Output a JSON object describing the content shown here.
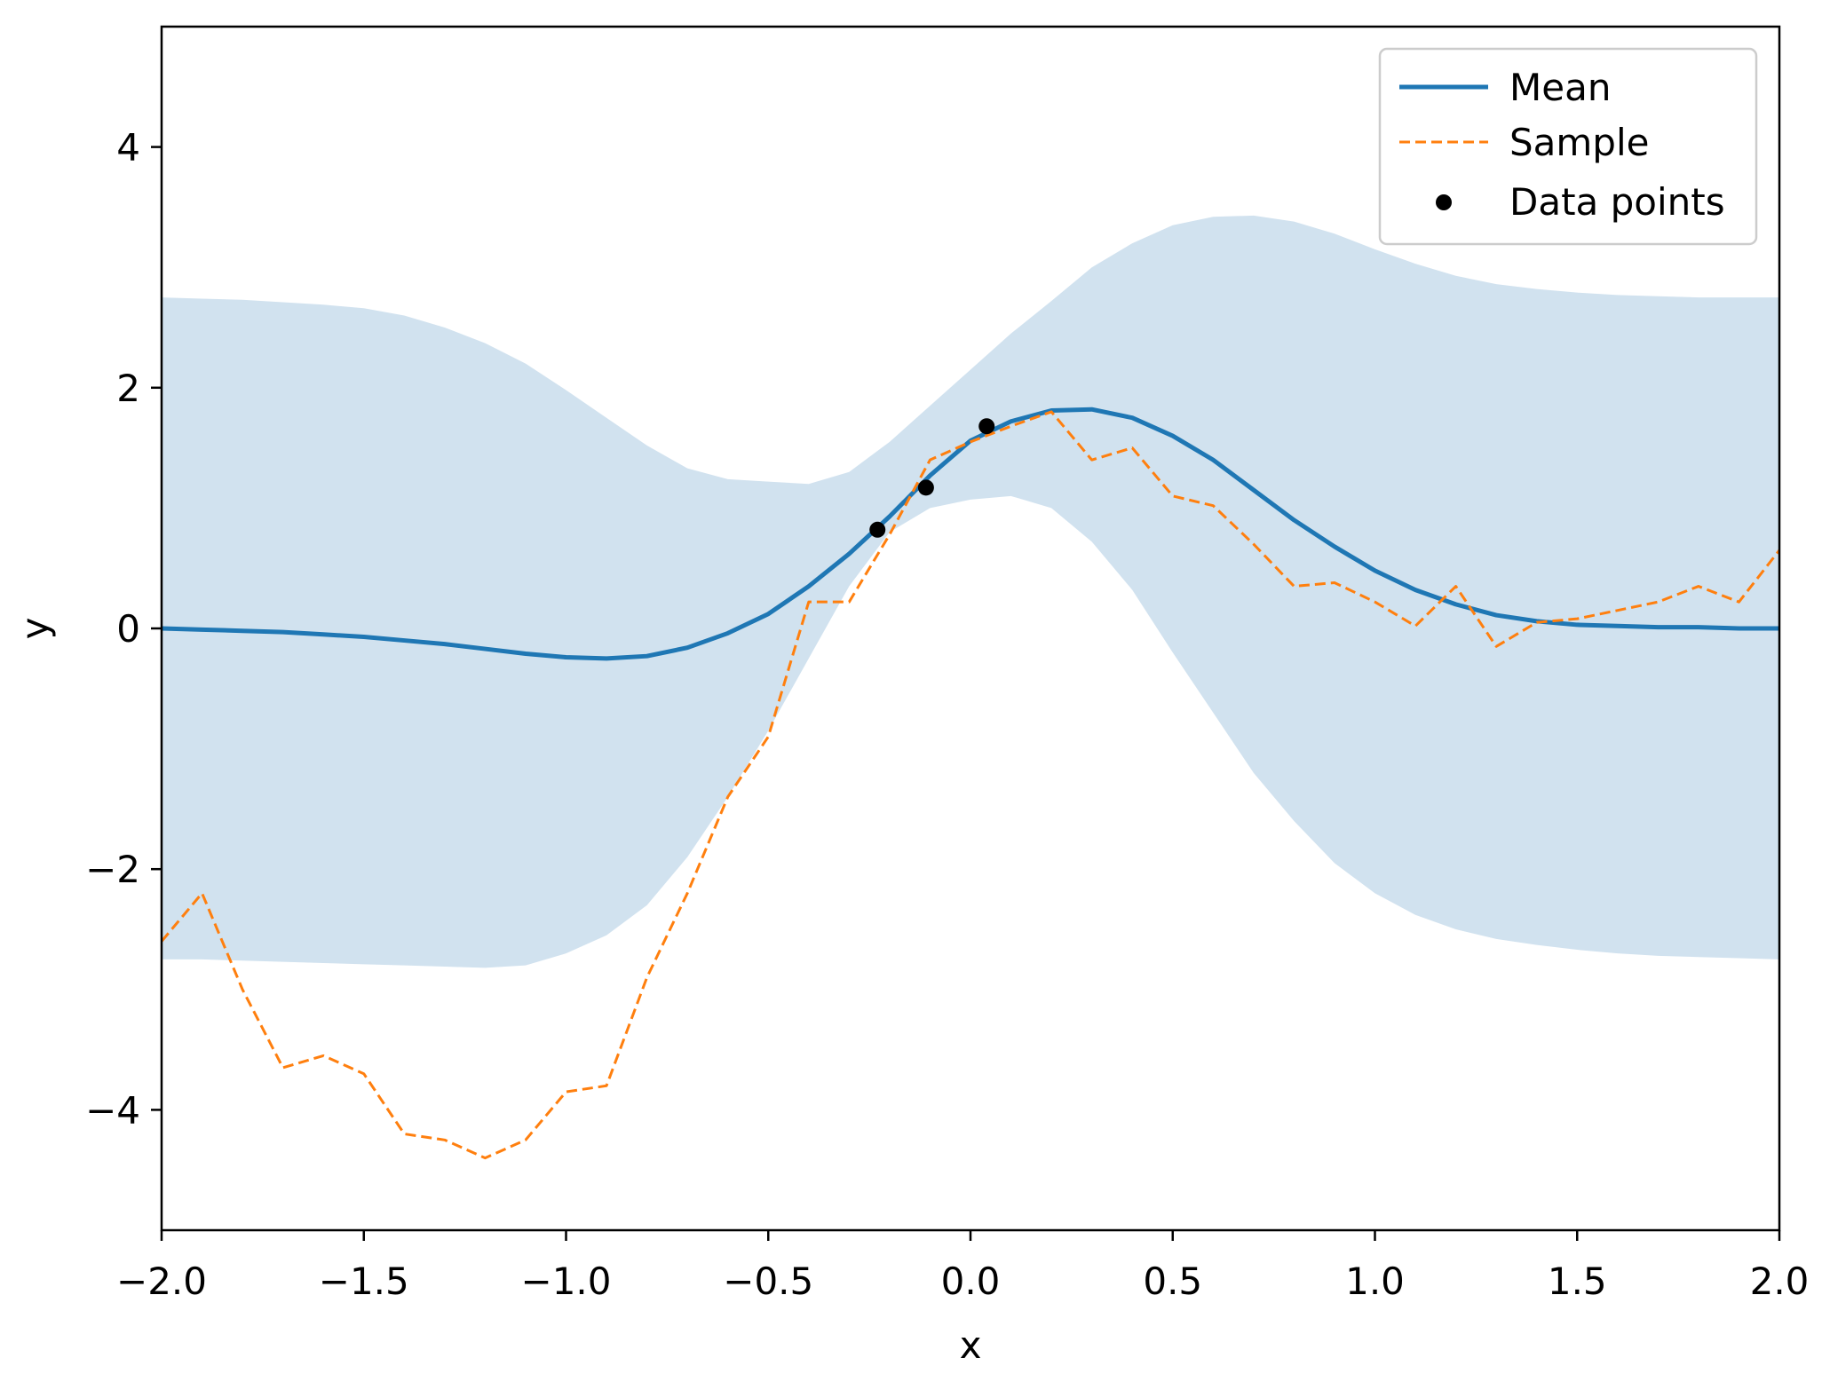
{
  "chart_data": {
    "type": "line",
    "title": "",
    "xlabel": "x",
    "ylabel": "y",
    "xlim": [
      -2.0,
      2.0
    ],
    "ylim": [
      -5.0,
      5.0
    ],
    "grid": false,
    "legend_position": "top-right",
    "colors": {
      "mean": "#1f77b4",
      "band": "#d1e2ef",
      "sample": "#ff7f0e",
      "points": "#000000"
    },
    "x_ticks": [
      {
        "value": -2.0,
        "label": "−2.0"
      },
      {
        "value": -1.5,
        "label": "−1.5"
      },
      {
        "value": -1.0,
        "label": "−1.0"
      },
      {
        "value": -0.5,
        "label": "−0.5"
      },
      {
        "value": 0.0,
        "label": "0.0"
      },
      {
        "value": 0.5,
        "label": "0.5"
      },
      {
        "value": 1.0,
        "label": "1.0"
      },
      {
        "value": 1.5,
        "label": "1.5"
      },
      {
        "value": 2.0,
        "label": "2.0"
      }
    ],
    "y_ticks": [
      {
        "value": -4,
        "label": "−4"
      },
      {
        "value": -2,
        "label": "−2"
      },
      {
        "value": 0,
        "label": "0"
      },
      {
        "value": 2,
        "label": "2"
      },
      {
        "value": 4,
        "label": "4"
      }
    ],
    "legend": [
      {
        "key": "mean",
        "label": "Mean",
        "style": "solid-line"
      },
      {
        "key": "sample",
        "label": "Sample",
        "style": "dashed-line"
      },
      {
        "key": "points",
        "label": "Data points",
        "style": "dot"
      }
    ],
    "x": [
      -2.0,
      -1.9,
      -1.8,
      -1.7,
      -1.6,
      -1.5,
      -1.4,
      -1.3,
      -1.2,
      -1.1,
      -1.0,
      -0.9,
      -0.8,
      -0.7,
      -0.6,
      -0.5,
      -0.4,
      -0.3,
      -0.2,
      -0.1,
      0.0,
      0.1,
      0.2,
      0.3,
      0.4,
      0.5,
      0.6,
      0.7,
      0.8,
      0.9,
      1.0,
      1.1,
      1.2,
      1.3,
      1.4,
      1.5,
      1.6,
      1.7,
      1.8,
      1.9,
      2.0
    ],
    "series": [
      {
        "name": "Mean",
        "key": "mean",
        "values": [
          0.0,
          -0.01,
          -0.02,
          -0.03,
          -0.05,
          -0.07,
          -0.1,
          -0.13,
          -0.17,
          -0.21,
          -0.24,
          -0.25,
          -0.23,
          -0.16,
          -0.04,
          0.12,
          0.35,
          0.62,
          0.93,
          1.27,
          1.56,
          1.72,
          1.81,
          1.82,
          1.75,
          1.6,
          1.4,
          1.15,
          0.9,
          0.68,
          0.48,
          0.32,
          0.2,
          0.11,
          0.06,
          0.03,
          0.02,
          0.01,
          0.01,
          0.0,
          0.0
        ]
      },
      {
        "name": "Sample",
        "key": "sample",
        "values": [
          -2.6,
          -2.2,
          -3.0,
          -3.65,
          -3.55,
          -3.7,
          -4.2,
          -4.25,
          -4.4,
          -4.25,
          -3.85,
          -3.8,
          -2.9,
          -2.2,
          -1.4,
          -0.9,
          0.22,
          0.22,
          0.78,
          1.4,
          1.55,
          1.68,
          1.8,
          1.4,
          1.5,
          1.1,
          1.02,
          0.7,
          0.35,
          0.38,
          0.22,
          0.02,
          0.35,
          -0.15,
          0.05,
          0.08,
          0.15,
          0.22,
          0.35,
          0.22,
          0.65
        ]
      }
    ],
    "band": {
      "name": "Confidence interval",
      "upper": [
        2.75,
        2.74,
        2.73,
        2.71,
        2.69,
        2.66,
        2.6,
        2.5,
        2.37,
        2.2,
        1.98,
        1.75,
        1.52,
        1.33,
        1.24,
        1.22,
        1.2,
        1.3,
        1.55,
        1.85,
        2.15,
        2.45,
        2.72,
        3.0,
        3.2,
        3.35,
        3.42,
        3.43,
        3.38,
        3.28,
        3.15,
        3.03,
        2.93,
        2.86,
        2.82,
        2.79,
        2.77,
        2.76,
        2.75,
        2.75,
        2.75
      ],
      "lower": [
        -2.75,
        -2.75,
        -2.76,
        -2.77,
        -2.78,
        -2.79,
        -2.8,
        -2.81,
        -2.82,
        -2.8,
        -2.7,
        -2.55,
        -2.3,
        -1.9,
        -1.4,
        -0.85,
        -0.25,
        0.35,
        0.8,
        1.0,
        1.07,
        1.1,
        1.0,
        0.72,
        0.32,
        -0.2,
        -0.7,
        -1.2,
        -1.6,
        -1.95,
        -2.2,
        -2.38,
        -2.5,
        -2.58,
        -2.63,
        -2.67,
        -2.7,
        -2.72,
        -2.73,
        -2.74,
        -2.75
      ]
    },
    "data_points": [
      {
        "x": -0.23,
        "y": 0.82
      },
      {
        "x": -0.11,
        "y": 1.17
      },
      {
        "x": 0.04,
        "y": 1.68
      }
    ]
  }
}
